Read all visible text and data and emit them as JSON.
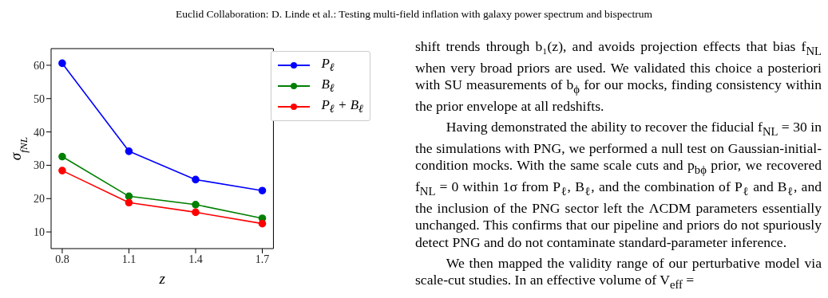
{
  "chart_data": {
    "type": "line",
    "title": "Euclid Collaboration: D. Linde et al.: Testing multi-field inflation with galaxy power spectrum and bispectrum",
    "xlabel": "z",
    "ylabel": "σ$_{fNL}$",
    "x": [
      0.8,
      1.1,
      1.4,
      1.7
    ],
    "series": [
      {
        "name": "P$_{ℓ}$",
        "color": "#0000ff",
        "values": [
          60.6,
          34.2,
          25.7,
          22.4
        ]
      },
      {
        "name": "B$_{ℓ}$",
        "color": "#008000",
        "values": [
          32.6,
          20.7,
          18.2,
          14.1
        ]
      },
      {
        "name": "P$_{ℓ}$ + B$_{ℓ}$",
        "color": "#ff0000",
        "values": [
          28.4,
          18.8,
          15.9,
          12.5
        ]
      }
    ],
    "xlim": [
      0.75,
      1.75
    ],
    "xticks": [
      0.8,
      1.1,
      1.4,
      1.7
    ],
    "ylim": [
      5,
      65
    ],
    "yticks": [
      10,
      20,
      30,
      40,
      50,
      60
    ],
    "legend": "top right",
    "marker": "circle",
    "line_style": "solid",
    "annotations": [
      "shift trends through b₁(z), and avoids projection effects that bias f$_{NL}$ when very broad priors are used. We validated this choice a posteriori with SU measurements of b$_{ϕ}$ for our mocks, finding consistency within the prior envelope at all redshifts.",
      "Having demonstrated the ability to recover the fiducial f$_{NL}$ = 30 in the simulations with PNG, we performed a null test on Gaussian-initial-condition mocks. With the same scale cuts and p$_{bϕ}$ prior, we recovered f$_{NL}$ = 0 within 1σ from P$_{ℓ}$, B$_{ℓ}$, and the combination of P$_{ℓ}$ and B$_{ℓ}$, and the inclusion of the PNG sector left the ΛCDM parameters essentially unchanged. This confirms that our pipeline and priors do not spuriously detect PNG and do not contaminate standard-parameter inference.",
      "We then mapped the validity range of our perturbative model via scale-cut studies. In an effective volume of V$_{eff}$ ="
    ]
  }
}
